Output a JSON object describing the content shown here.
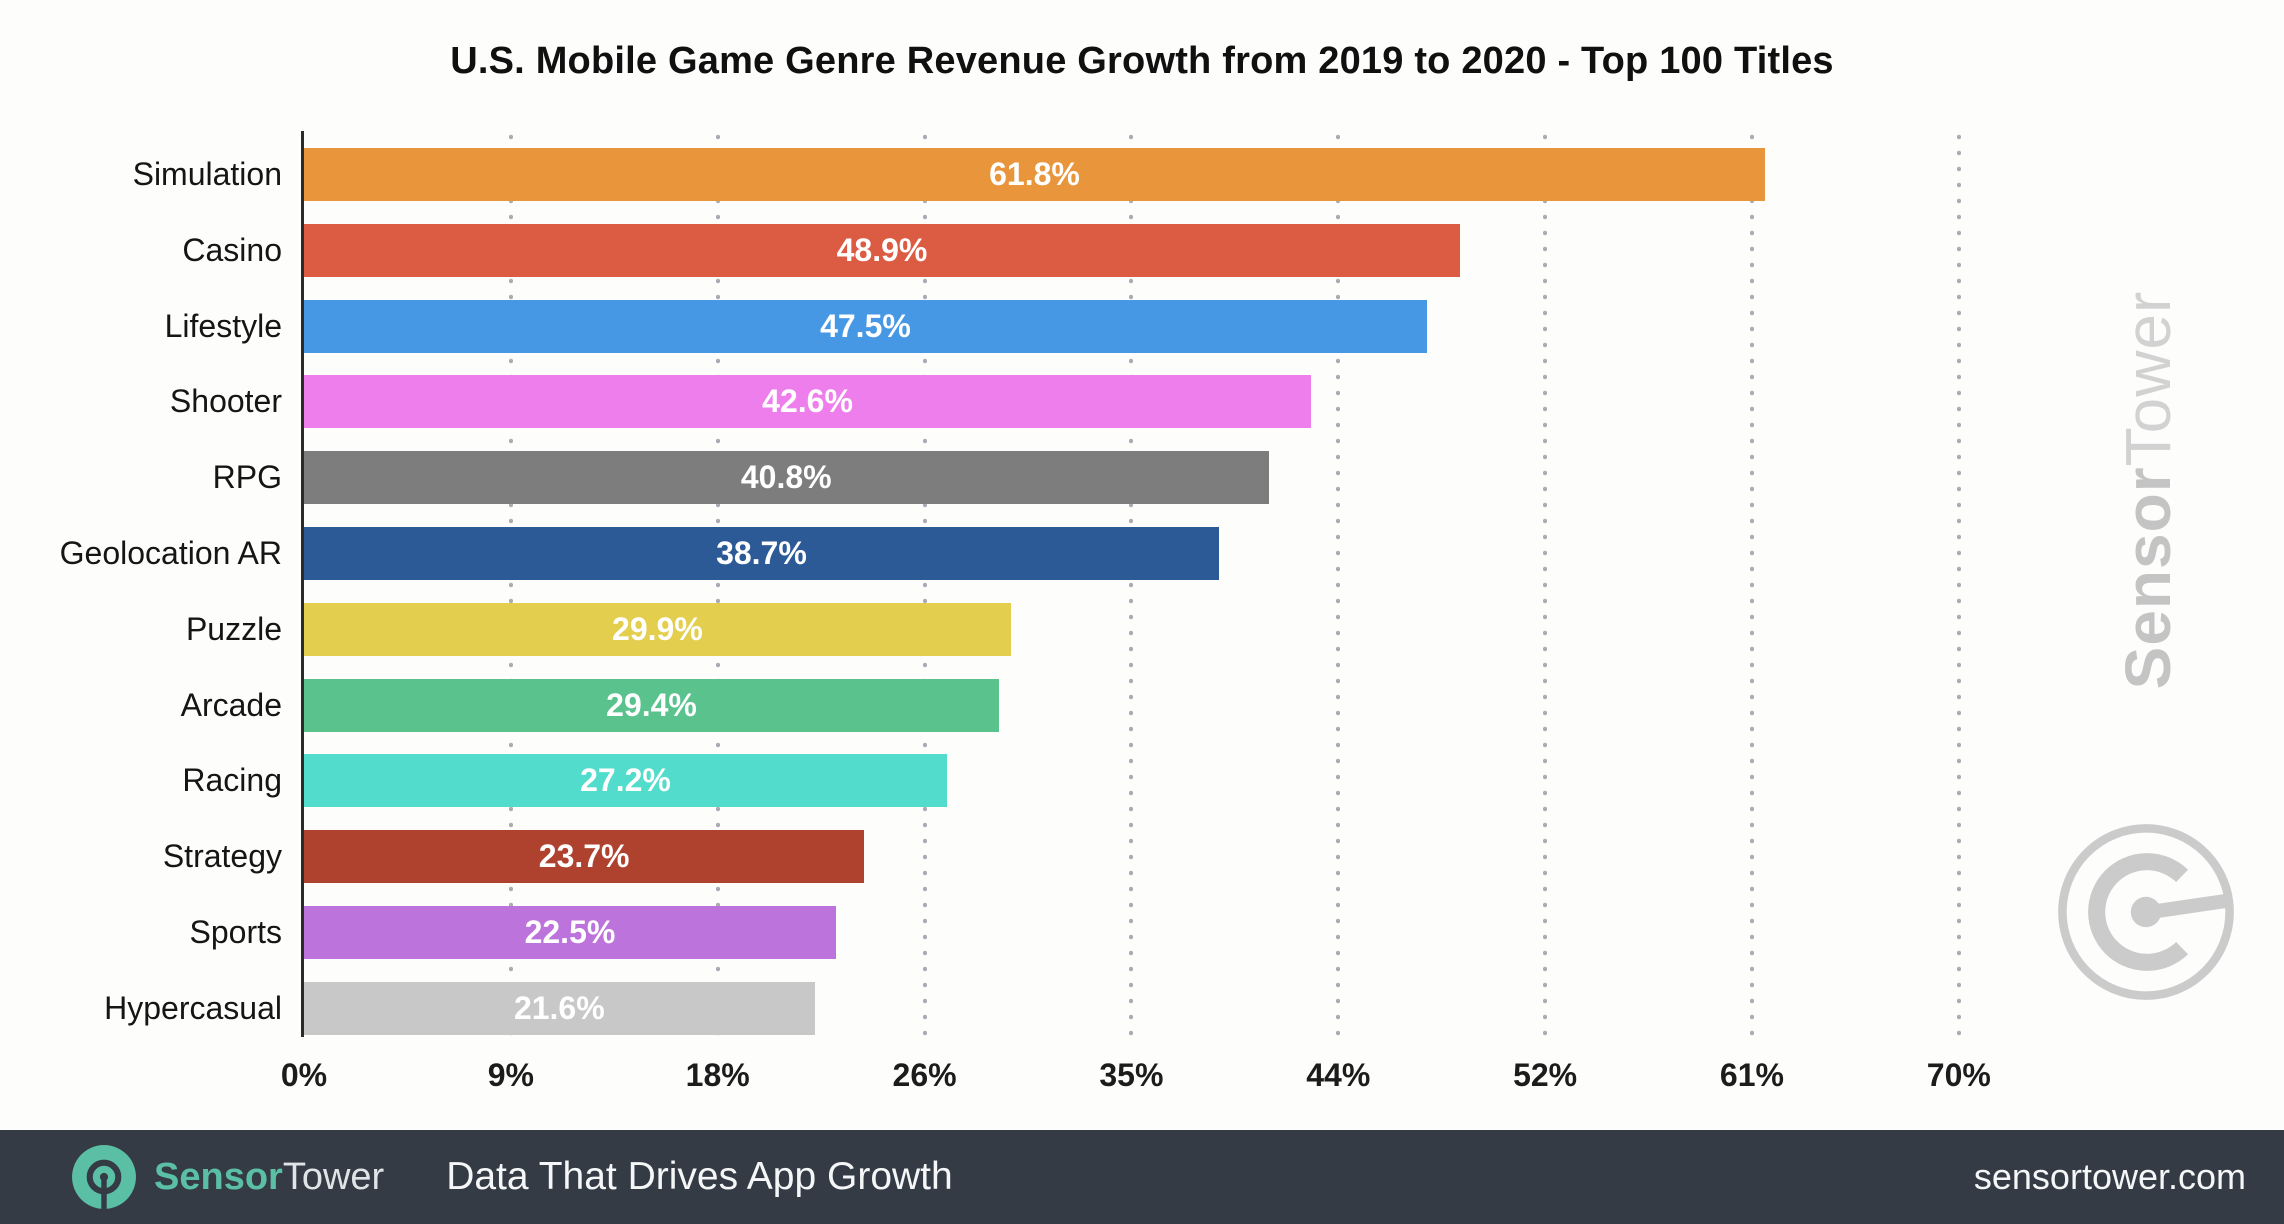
{
  "title": "U.S. Mobile Game Genre Revenue Growth from 2019 to 2020 - Top 100 Titles",
  "chart_data": {
    "type": "bar",
    "orientation": "horizontal",
    "title": "U.S. Mobile Game Genre Revenue Growth from 2019 to 2020 - Top 100 Titles",
    "categories": [
      "Simulation",
      "Casino",
      "Lifestyle",
      "Shooter",
      "RPG",
      "Geolocation AR",
      "Puzzle",
      "Arcade",
      "Racing",
      "Strategy",
      "Sports",
      "Hypercasual"
    ],
    "values": [
      61.8,
      48.9,
      47.5,
      42.6,
      40.8,
      38.7,
      29.9,
      29.4,
      27.2,
      23.7,
      22.5,
      21.6
    ],
    "value_labels": [
      "61.8%",
      "48.9%",
      "47.5%",
      "42.6%",
      "40.8%",
      "38.7%",
      "29.9%",
      "29.4%",
      "27.2%",
      "23.7%",
      "22.5%",
      "21.6%"
    ],
    "bar_colors": [
      "#e8953c",
      "#dc5b43",
      "#4697e4",
      "#ef7eed",
      "#7d7d7d",
      "#2b5a97",
      "#e4ce4e",
      "#5ac28d",
      "#52dccc",
      "#af412f",
      "#bc73db",
      "#c8c8c8"
    ],
    "xlabel": "",
    "ylabel": "",
    "xlim": [
      0,
      70
    ],
    "x_ticks": [
      {
        "value": 0,
        "label": "0%"
      },
      {
        "value": 8.75,
        "label": "9%"
      },
      {
        "value": 17.5,
        "label": "18%"
      },
      {
        "value": 26.25,
        "label": "26%"
      },
      {
        "value": 35,
        "label": "35%"
      },
      {
        "value": 43.75,
        "label": "44%"
      },
      {
        "value": 52.5,
        "label": "52%"
      },
      {
        "value": 61.25,
        "label": "61%"
      },
      {
        "value": 70,
        "label": "70%"
      }
    ],
    "grid": "vertical-dotted",
    "legend": "none",
    "value_label_color": "#ffffff"
  },
  "watermark": {
    "brand_part1": "Sensor",
    "brand_part2": "Tower",
    "logo": "sensortower-radar-icon",
    "color": "#c7c7c7"
  },
  "footer": {
    "brand_part1": "Sensor",
    "brand_part2": "Tower",
    "tagline": "Data That Drives App Growth",
    "website": "sensortower.com",
    "background": "#353b45",
    "accent": "#5bbfa6",
    "text_color": "#f4f6f7"
  }
}
